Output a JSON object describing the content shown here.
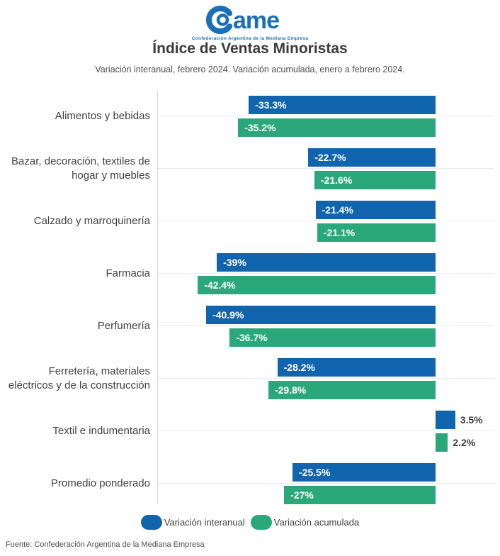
{
  "header": {
    "logo_text": "ame",
    "logo_caption": "Confederación Argentina de la Mediana Empresa",
    "title": "Índice de Ventas Minoristas",
    "subtitle": "Variación interanual, febrero 2024. Variación acumulada, enero a febrero 2024."
  },
  "chart_data": {
    "type": "bar",
    "orientation": "horizontal",
    "unit": "%",
    "title": "Índice de Ventas Minoristas",
    "subtitle": "Variación interanual, febrero 2024. Variación acumulada, enero a febrero 2024.",
    "categories": [
      "Alimentos y bebidas",
      "Bazar, decoración, textiles de\nhogar y muebles",
      "Calzado y marroquinería",
      "Farmacia",
      "Perfumería",
      "Ferretería, materiales\neléctricos y de la construcción",
      "Textil e indumentaria",
      "Promedio ponderado"
    ],
    "series": [
      {
        "name": "Variación interanual",
        "color": "#1164ae",
        "values": [
          -33.3,
          -22.7,
          -21.4,
          -39,
          -40.9,
          -28.2,
          3.5,
          -25.5
        ],
        "labels": [
          "-33.3%",
          "-22.7%",
          "-21.4%",
          "-39%",
          "-40.9%",
          "-28.2%",
          "3.5%",
          "-25.5%"
        ]
      },
      {
        "name": "Variación acumulada",
        "color": "#2aa87c",
        "values": [
          -35.2,
          -21.6,
          -21.1,
          -42.4,
          -36.7,
          -29.8,
          2.2,
          -27
        ],
        "labels": [
          "-35.2%",
          "-21.6%",
          "-21.1%",
          "-42.4%",
          "-36.7%",
          "-29.8%",
          "2.2%",
          "-27%"
        ]
      }
    ],
    "xlim": [
      -45,
      10
    ],
    "grid": "one horizontal gridline per category, vertical axis line at left of plot",
    "legend_position": "bottom",
    "value_label_style": "negative values inside bar in white bold; positive values outside bar in dark bold"
  },
  "legend": {
    "items": [
      {
        "label": "Variación interanual",
        "color": "#1164ae"
      },
      {
        "label": "Variación acumulada",
        "color": "#2aa87c"
      }
    ]
  },
  "footer": {
    "source": "Fuente: Confederación Argentina de la Mediana Empresa"
  },
  "colors": {
    "bar_blue": "#1164ae",
    "bar_green": "#2aa87c",
    "logo_blue": "#1b6fb8",
    "title_text": "#3b3b3b",
    "gridline": "#ebebeb",
    "axis_line": "#d9d9d9"
  }
}
